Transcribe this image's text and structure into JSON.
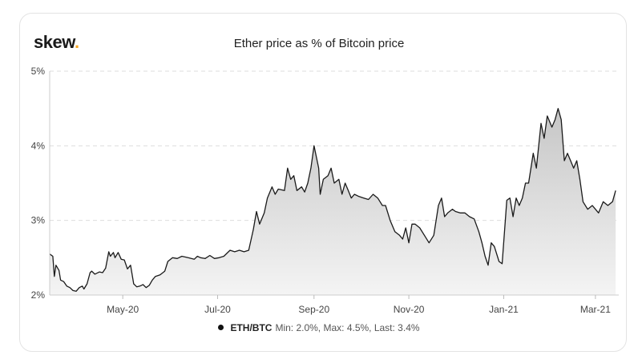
{
  "brand": {
    "name": "skew",
    "dot": ".",
    "dot_color": "#f5a623"
  },
  "legend": {
    "series": "ETH/BTC",
    "stats": "Min: 2.0%, Max: 4.5%, Last: 3.4%"
  },
  "chart_data": {
    "type": "area",
    "title": "Ether price as % of Bitcoin price",
    "xlabel": "",
    "ylabel": "",
    "ylim": [
      2,
      5
    ],
    "xlim": [
      "2020-03-15",
      "2021-03-16"
    ],
    "yticks": [
      2,
      3,
      4,
      5
    ],
    "ytick_labels": [
      "2%",
      "3%",
      "4%",
      "5%"
    ],
    "xticks": [
      "2020-05-01",
      "2020-07-01",
      "2020-09-01",
      "2020-11-01",
      "2021-01-01",
      "2021-03-01"
    ],
    "xtick_labels": [
      "May-20",
      "Jul-20",
      "Sep-20",
      "Nov-20",
      "Jan-21",
      "Mar-21"
    ],
    "grid": true,
    "line_color": "#1a1a1a",
    "fill_top_color": "#c6c6c6",
    "fill_bottom_color": "#f4f4f4",
    "series": [
      {
        "name": "ETH/BTC",
        "points": [
          [
            "2020-03-15",
            2.55
          ],
          [
            "2020-03-17",
            2.52
          ],
          [
            "2020-03-18",
            2.25
          ],
          [
            "2020-03-19",
            2.4
          ],
          [
            "2020-03-21",
            2.33
          ],
          [
            "2020-03-22",
            2.2
          ],
          [
            "2020-03-24",
            2.18
          ],
          [
            "2020-03-26",
            2.12
          ],
          [
            "2020-03-28",
            2.1
          ],
          [
            "2020-03-30",
            2.06
          ],
          [
            "2020-04-01",
            2.05
          ],
          [
            "2020-04-03",
            2.1
          ],
          [
            "2020-04-05",
            2.12
          ],
          [
            "2020-04-06",
            2.08
          ],
          [
            "2020-04-08",
            2.15
          ],
          [
            "2020-04-10",
            2.3
          ],
          [
            "2020-04-11",
            2.32
          ],
          [
            "2020-04-13",
            2.28
          ],
          [
            "2020-04-16",
            2.31
          ],
          [
            "2020-04-18",
            2.3
          ],
          [
            "2020-04-20",
            2.36
          ],
          [
            "2020-04-22",
            2.58
          ],
          [
            "2020-04-23",
            2.52
          ],
          [
            "2020-04-25",
            2.57
          ],
          [
            "2020-04-26",
            2.5
          ],
          [
            "2020-04-28",
            2.57
          ],
          [
            "2020-04-30",
            2.48
          ],
          [
            "2020-05-02",
            2.47
          ],
          [
            "2020-05-04",
            2.35
          ],
          [
            "2020-05-06",
            2.4
          ],
          [
            "2020-05-08",
            2.15
          ],
          [
            "2020-05-10",
            2.11
          ],
          [
            "2020-05-12",
            2.12
          ],
          [
            "2020-05-14",
            2.14
          ],
          [
            "2020-05-16",
            2.1
          ],
          [
            "2020-05-18",
            2.13
          ],
          [
            "2020-05-20",
            2.2
          ],
          [
            "2020-05-22",
            2.25
          ],
          [
            "2020-05-25",
            2.27
          ],
          [
            "2020-05-28",
            2.32
          ],
          [
            "2020-05-30",
            2.45
          ],
          [
            "2020-06-02",
            2.5
          ],
          [
            "2020-06-05",
            2.49
          ],
          [
            "2020-06-08",
            2.52
          ],
          [
            "2020-06-12",
            2.5
          ],
          [
            "2020-06-16",
            2.48
          ],
          [
            "2020-06-18",
            2.52
          ],
          [
            "2020-06-20",
            2.5
          ],
          [
            "2020-06-23",
            2.49
          ],
          [
            "2020-06-26",
            2.53
          ],
          [
            "2020-06-29",
            2.49
          ],
          [
            "2020-07-02",
            2.5
          ],
          [
            "2020-07-05",
            2.52
          ],
          [
            "2020-07-09",
            2.6
          ],
          [
            "2020-07-12",
            2.58
          ],
          [
            "2020-07-15",
            2.6
          ],
          [
            "2020-07-18",
            2.58
          ],
          [
            "2020-07-21",
            2.6
          ],
          [
            "2020-07-24",
            2.88
          ],
          [
            "2020-07-26",
            3.12
          ],
          [
            "2020-07-28",
            2.95
          ],
          [
            "2020-07-31",
            3.1
          ],
          [
            "2020-08-02",
            3.3
          ],
          [
            "2020-08-05",
            3.45
          ],
          [
            "2020-08-07",
            3.35
          ],
          [
            "2020-08-09",
            3.42
          ],
          [
            "2020-08-13",
            3.4
          ],
          [
            "2020-08-15",
            3.7
          ],
          [
            "2020-08-17",
            3.55
          ],
          [
            "2020-08-19",
            3.6
          ],
          [
            "2020-08-21",
            3.4
          ],
          [
            "2020-08-24",
            3.45
          ],
          [
            "2020-08-26",
            3.38
          ],
          [
            "2020-08-28",
            3.5
          ],
          [
            "2020-08-30",
            3.7
          ],
          [
            "2020-09-01",
            4.0
          ],
          [
            "2020-09-04",
            3.7
          ],
          [
            "2020-09-05",
            3.35
          ],
          [
            "2020-09-07",
            3.55
          ],
          [
            "2020-09-10",
            3.6
          ],
          [
            "2020-09-12",
            3.7
          ],
          [
            "2020-09-14",
            3.5
          ],
          [
            "2020-09-17",
            3.55
          ],
          [
            "2020-09-19",
            3.35
          ],
          [
            "2020-09-21",
            3.5
          ],
          [
            "2020-09-23",
            3.4
          ],
          [
            "2020-09-25",
            3.3
          ],
          [
            "2020-09-27",
            3.35
          ],
          [
            "2020-09-30",
            3.32
          ],
          [
            "2020-10-03",
            3.3
          ],
          [
            "2020-10-06",
            3.28
          ],
          [
            "2020-10-09",
            3.35
          ],
          [
            "2020-10-12",
            3.3
          ],
          [
            "2020-10-15",
            3.2
          ],
          [
            "2020-10-17",
            3.2
          ],
          [
            "2020-10-20",
            3.0
          ],
          [
            "2020-10-23",
            2.85
          ],
          [
            "2020-10-26",
            2.8
          ],
          [
            "2020-10-28",
            2.75
          ],
          [
            "2020-10-30",
            2.9
          ],
          [
            "2020-11-01",
            2.7
          ],
          [
            "2020-11-03",
            2.95
          ],
          [
            "2020-11-05",
            2.95
          ],
          [
            "2020-11-08",
            2.9
          ],
          [
            "2020-11-11",
            2.8
          ],
          [
            "2020-11-14",
            2.7
          ],
          [
            "2020-11-17",
            2.8
          ],
          [
            "2020-11-20",
            3.2
          ],
          [
            "2020-11-22",
            3.3
          ],
          [
            "2020-11-24",
            3.05
          ],
          [
            "2020-11-26",
            3.1
          ],
          [
            "2020-11-29",
            3.15
          ],
          [
            "2020-12-01",
            3.12
          ],
          [
            "2020-12-04",
            3.1
          ],
          [
            "2020-12-07",
            3.1
          ],
          [
            "2020-12-10",
            3.05
          ],
          [
            "2020-12-13",
            3.02
          ],
          [
            "2020-12-16",
            2.85
          ],
          [
            "2020-12-18",
            2.7
          ],
          [
            "2020-12-20",
            2.52
          ],
          [
            "2020-12-22",
            2.4
          ],
          [
            "2020-12-24",
            2.7
          ],
          [
            "2020-12-26",
            2.65
          ],
          [
            "2020-12-29",
            2.45
          ],
          [
            "2020-12-31",
            2.42
          ],
          [
            "2021-01-03",
            3.27
          ],
          [
            "2021-01-05",
            3.3
          ],
          [
            "2021-01-07",
            3.05
          ],
          [
            "2021-01-09",
            3.3
          ],
          [
            "2021-01-11",
            3.2
          ],
          [
            "2021-01-13",
            3.3
          ],
          [
            "2021-01-15",
            3.5
          ],
          [
            "2021-01-17",
            3.5
          ],
          [
            "2021-01-20",
            3.9
          ],
          [
            "2021-01-22",
            3.7
          ],
          [
            "2021-01-25",
            4.3
          ],
          [
            "2021-01-27",
            4.1
          ],
          [
            "2021-01-29",
            4.4
          ],
          [
            "2021-02-01",
            4.25
          ],
          [
            "2021-02-03",
            4.35
          ],
          [
            "2021-02-05",
            4.5
          ],
          [
            "2021-02-07",
            4.35
          ],
          [
            "2021-02-09",
            3.8
          ],
          [
            "2021-02-11",
            3.9
          ],
          [
            "2021-02-13",
            3.8
          ],
          [
            "2021-02-15",
            3.7
          ],
          [
            "2021-02-17",
            3.8
          ],
          [
            "2021-02-19",
            3.55
          ],
          [
            "2021-02-21",
            3.25
          ],
          [
            "2021-02-24",
            3.15
          ],
          [
            "2021-02-27",
            3.2
          ],
          [
            "2021-03-01",
            3.15
          ],
          [
            "2021-03-03",
            3.1
          ],
          [
            "2021-03-06",
            3.25
          ],
          [
            "2021-03-09",
            3.2
          ],
          [
            "2021-03-12",
            3.25
          ],
          [
            "2021-03-14",
            3.4
          ]
        ]
      }
    ]
  }
}
